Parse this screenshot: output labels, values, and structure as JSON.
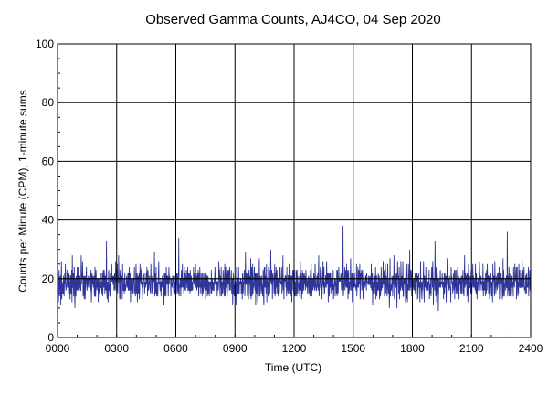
{
  "chart_data": {
    "type": "line",
    "title": "Observed Gamma Counts, AJ4CO, 04 Sep 2020",
    "xlabel": "Time (UTC)",
    "ylabel": "Counts per Minute (CPM), 1-minute sums",
    "xlim": [
      0,
      1440
    ],
    "ylim": [
      0,
      100
    ],
    "x_ticks": [
      {
        "value": 0,
        "label": "0000"
      },
      {
        "value": 180,
        "label": "0300"
      },
      {
        "value": 360,
        "label": "0600"
      },
      {
        "value": 540,
        "label": "0900"
      },
      {
        "value": 720,
        "label": "1200"
      },
      {
        "value": 900,
        "label": "1500"
      },
      {
        "value": 1080,
        "label": "1800"
      },
      {
        "value": 1260,
        "label": "2100"
      },
      {
        "value": 1440,
        "label": "2400"
      }
    ],
    "y_ticks": [
      {
        "value": 0,
        "label": "0"
      },
      {
        "value": 20,
        "label": "20"
      },
      {
        "value": 40,
        "label": "40"
      },
      {
        "value": 60,
        "label": "60"
      },
      {
        "value": 80,
        "label": "80"
      },
      {
        "value": 100,
        "label": "100"
      }
    ],
    "reference_line": {
      "y": 20,
      "color": "#000000"
    },
    "grid": true,
    "legend": "none",
    "series": [
      {
        "color": "#2F3699",
        "x_step_minutes": 1,
        "approx_mean": 18,
        "approx_range": [
          7,
          36
        ],
        "values": [
          18,
          21,
          16,
          14,
          20,
          23,
          17,
          15,
          19,
          22,
          12,
          18,
          25,
          16,
          19,
          20,
          14,
          17,
          21,
          18,
          16,
          22,
          19,
          15,
          27,
          17,
          13,
          20,
          18,
          23,
          16,
          19,
          21,
          12,
          18,
          24,
          17,
          20,
          15,
          19,
          22,
          16,
          18,
          20,
          14,
          26,
          17,
          19,
          21,
          15,
          18,
          23,
          16,
          12,
          20,
          19,
          17,
          22,
          18,
          15,
          21,
          19,
          16,
          24,
          18,
          14,
          20,
          17,
          22,
          19,
          15,
          18,
          29,
          16,
          20,
          17,
          23,
          19,
          13,
          18,
          21,
          16,
          19,
          22,
          15,
          18,
          20,
          17,
          25,
          14,
          19,
          21,
          16,
          18,
          23,
          17,
          20,
          15,
          19,
          22,
          18,
          16,
          21,
          13,
          19,
          24,
          17,
          20,
          18,
          15,
          22,
          19,
          16,
          20,
          27,
          17,
          14,
          21,
          18,
          19,
          16,
          23,
          18,
          20,
          15,
          19,
          22,
          17,
          13,
          21,
          18,
          25,
          16,
          19,
          20,
          17,
          22,
          15,
          18,
          21,
          19,
          16,
          24,
          18,
          14,
          20,
          17,
          22,
          19,
          31,
          18,
          16,
          21,
          19,
          15,
          20,
          23,
          17,
          18,
          12,
          19,
          22,
          16,
          20,
          18,
          25,
          17,
          19,
          21,
          15,
          18,
          22,
          16,
          19,
          20,
          14,
          17,
          23,
          18,
          21,
          16,
          19,
          22,
          15,
          18,
          20,
          26,
          17,
          19,
          13,
          21,
          18,
          16,
          22,
          19,
          17,
          20,
          15,
          24,
          18,
          19,
          16,
          21,
          18,
          14,
          22,
          19,
          17,
          20,
          16,
          23,
          18,
          19,
          15,
          21,
          17,
          20,
          18,
          25,
          16,
          19,
          22,
          14,
          18,
          20,
          17,
          21,
          19,
          16,
          23,
          18,
          15,
          20,
          19,
          22,
          17,
          18,
          16,
          21,
          28,
          17,
          19,
          20,
          15,
          18,
          22,
          16,
          19,
          21,
          13,
          18,
          24,
          17,
          20,
          19,
          16,
          22,
          18,
          15,
          21,
          19,
          17,
          20,
          18,
          23,
          16,
          19,
          21,
          14,
          18,
          20,
          17,
          25,
          19,
          16,
          22,
          18,
          15,
          20,
          19,
          21,
          17,
          18,
          16,
          23,
          19,
          20,
          15,
          18,
          22,
          17,
          19,
          21,
          16,
          18,
          26,
          14,
          20,
          19,
          17,
          22,
          18,
          16,
          21,
          19,
          15,
          20,
          18,
          24,
          17,
          19,
          22,
          16,
          18,
          20,
          15,
          21,
          19,
          17,
          23,
          18,
          16,
          20,
          19,
          14,
          22,
          18,
          17,
          21,
          19,
          16,
          25,
          18,
          20,
          15,
          19,
          22,
          17,
          18,
          21,
          16,
          19,
          20,
          18,
          23,
          15,
          19,
          21,
          17,
          18,
          22,
          16,
          20,
          19,
          14,
          18,
          24,
          17,
          21,
          19,
          16,
          20,
          18,
          22,
          15,
          19,
          21,
          17,
          18,
          36,
          16,
          19,
          20,
          18,
          22,
          15,
          19,
          21,
          17,
          18,
          23,
          16,
          20,
          19,
          15,
          18,
          22,
          17,
          21,
          19,
          16,
          18,
          25,
          20,
          17,
          19,
          22,
          15,
          18,
          21,
          19,
          16,
          20,
          18,
          24,
          17,
          19,
          21,
          15,
          18,
          22,
          16,
          20,
          19,
          27,
          17,
          18,
          21,
          16,
          19,
          22,
          15,
          18,
          20,
          17,
          23,
          19,
          16,
          21,
          18,
          15,
          20,
          19,
          22,
          17,
          18,
          16,
          21,
          19,
          20,
          15,
          24,
          18,
          17,
          21,
          19,
          16,
          22,
          18,
          20,
          15,
          19,
          21,
          17,
          18,
          23,
          16,
          19,
          20,
          13,
          18,
          22,
          17,
          21,
          19,
          16,
          20,
          18,
          25,
          15,
          19,
          22,
          17,
          18,
          21,
          16,
          19,
          20,
          18,
          23,
          15,
          19,
          21,
          17,
          18,
          22,
          16,
          20,
          19,
          14,
          18,
          24,
          17,
          21,
          19,
          16,
          20,
          18,
          22,
          15
        ],
        "values_note_keys": []
      }
    ]
  }
}
